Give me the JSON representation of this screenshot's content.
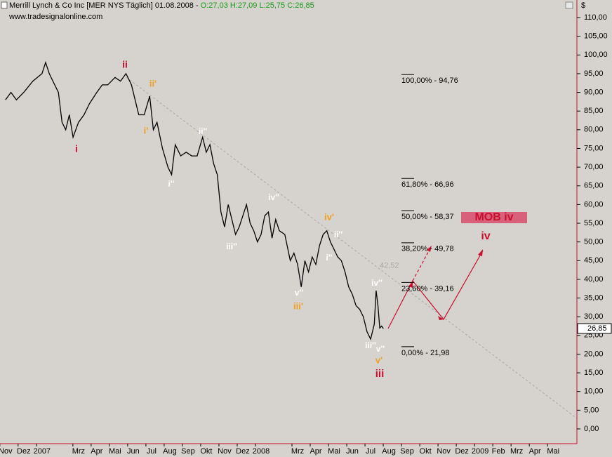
{
  "chart_data": {
    "type": "line",
    "title": "Merrill Lynch & Co Inc [MER NYS  Täglich] 01.08.2008 - ",
    "quote": "O:27,03 H:27,09 L:25,75 C:26,85",
    "subtitle": "www.tradesignalonline.com",
    "y_unit": "$",
    "series": [
      {
        "color": "#000000",
        "x": [
          0,
          0.3,
          0.6,
          1,
          1.5,
          2,
          2.2,
          2.4,
          2.6,
          2.9,
          3.1,
          3.3,
          3.5,
          3.7,
          4,
          4.3,
          4.6,
          5,
          5.3,
          5.6,
          6,
          6.3,
          6.6,
          6.9,
          7.1,
          7.3,
          7.6,
          7.9,
          8.1,
          8.3,
          8.6,
          8.9,
          9.1,
          9.3,
          9.6,
          9.9,
          10.2,
          10.5,
          10.8,
          11,
          11.2,
          11.4,
          11.6,
          11.8,
          12,
          12.2,
          12.4,
          12.6,
          12.8,
          13,
          13.2,
          13.4,
          13.6,
          13.8,
          14,
          14.2,
          14.4,
          14.6,
          14.8,
          15,
          15.3,
          15.6,
          15.8,
          16,
          16.2,
          16.4,
          16.6,
          16.8,
          17,
          17.2,
          17.4,
          17.6,
          17.8,
          18,
          18.2,
          18.4,
          18.6,
          18.8,
          19,
          19.2,
          19.4,
          19.6,
          19.8,
          20,
          20.2,
          20.3,
          20.4,
          20.5,
          20.6,
          20.7
        ],
        "values": [
          88,
          90,
          88,
          90,
          93,
          95,
          98,
          95,
          93,
          90,
          82,
          80,
          84,
          78,
          82,
          84,
          87,
          90,
          92,
          92,
          94,
          93,
          95,
          92,
          88,
          84,
          84,
          89,
          80,
          82,
          75,
          70,
          68,
          76,
          73,
          74,
          73,
          73,
          78,
          74,
          76,
          71,
          68,
          58,
          54,
          60,
          56,
          52,
          54,
          57,
          60,
          55,
          53,
          50,
          52,
          57,
          58,
          51,
          56,
          53,
          52,
          45,
          47,
          44,
          38,
          45,
          42,
          46,
          44,
          49,
          52,
          53,
          50,
          48,
          46,
          45,
          42,
          38,
          36,
          33,
          32,
          30,
          26,
          24,
          28,
          37,
          33,
          27,
          27.5,
          26.85
        ]
      }
    ],
    "xlim": [
      -0.3,
      31.3
    ],
    "ylim": [
      -3.57,
      114.7
    ],
    "xticks": [
      {
        "value": 0,
        "label": "Nov"
      },
      {
        "value": 1,
        "label": "Dez"
      },
      {
        "value": 2,
        "label": "2007"
      },
      {
        "value": 4,
        "label": "Mrz"
      },
      {
        "value": 5,
        "label": "Apr"
      },
      {
        "value": 6,
        "label": "Mai"
      },
      {
        "value": 7,
        "label": "Jun"
      },
      {
        "value": 8,
        "label": "Jul"
      },
      {
        "value": 9,
        "label": "Aug"
      },
      {
        "value": 10,
        "label": "Sep"
      },
      {
        "value": 11,
        "label": "Okt"
      },
      {
        "value": 12,
        "label": "Nov"
      },
      {
        "value": 13,
        "label": "Dez"
      },
      {
        "value": 14,
        "label": "2008"
      },
      {
        "value": 16,
        "label": "Mrz"
      },
      {
        "value": 17,
        "label": "Apr"
      },
      {
        "value": 18,
        "label": "Mai"
      },
      {
        "value": 19,
        "label": "Jun"
      },
      {
        "value": 20,
        "label": "Jul"
      },
      {
        "value": 21,
        "label": "Aug"
      },
      {
        "value": 22,
        "label": "Sep"
      },
      {
        "value": 23,
        "label": "Okt"
      },
      {
        "value": 24,
        "label": "Nov"
      },
      {
        "value": 25,
        "label": "Dez"
      },
      {
        "value": 26,
        "label": "2009"
      },
      {
        "value": 27,
        "label": "Feb"
      },
      {
        "value": 28,
        "label": "Mrz"
      },
      {
        "value": 29,
        "label": "Apr"
      },
      {
        "value": 30,
        "label": "Mai"
      }
    ],
    "yticks": [
      {
        "value": 0,
        "label": "0,00"
      },
      {
        "value": 5,
        "label": "5,00"
      },
      {
        "value": 10,
        "label": "10,00"
      },
      {
        "value": 15,
        "label": "15,00"
      },
      {
        "value": 20,
        "label": "20,00"
      },
      {
        "value": 25,
        "label": "25,00"
      },
      {
        "value": 30,
        "label": "30,00"
      },
      {
        "value": 35,
        "label": "35,00"
      },
      {
        "value": 40,
        "label": "40,00"
      },
      {
        "value": 45,
        "label": "45,00"
      },
      {
        "value": 50,
        "label": "50,00"
      },
      {
        "value": 55,
        "label": "55,00"
      },
      {
        "value": 60,
        "label": "60,00"
      },
      {
        "value": 65,
        "label": "65,00"
      },
      {
        "value": 70,
        "label": "70,00"
      },
      {
        "value": 75,
        "label": "75,00"
      },
      {
        "value": 80,
        "label": "80,00"
      },
      {
        "value": 85,
        "label": "85,00"
      },
      {
        "value": 90,
        "label": "90,00"
      },
      {
        "value": 95,
        "label": "95,00"
      },
      {
        "value": 100,
        "label": "100,00"
      },
      {
        "value": 105,
        "label": "105,00"
      },
      {
        "value": 110,
        "label": "110,00"
      }
    ],
    "last_price": {
      "value": 26.85,
      "label": "26,85"
    },
    "trend_level": {
      "value": 42.52,
      "label": "42,52"
    },
    "fib_levels": [
      {
        "value": 94.76,
        "label": "100,00% - 94,76"
      },
      {
        "value": 66.96,
        "label": "61,80% - 66,96"
      },
      {
        "value": 58.37,
        "label": "50,00% - 58,37"
      },
      {
        "value": 49.78,
        "label": "38,20% - 49,78"
      },
      {
        "value": 39.16,
        "label": "23,60% - 39,16"
      },
      {
        "value": 21.98,
        "label": "0,00% - 21,98"
      }
    ],
    "target_box": "MOB iv",
    "wave_labels": [
      "ii",
      "i",
      "ii'",
      "i'",
      "ii''",
      "i''",
      "iv''",
      "iii''",
      "iv'",
      "ii''",
      "i''",
      "v''",
      "iii'",
      "iv''",
      "iii''",
      "v''",
      "v'",
      "iii",
      "iv"
    ]
  }
}
